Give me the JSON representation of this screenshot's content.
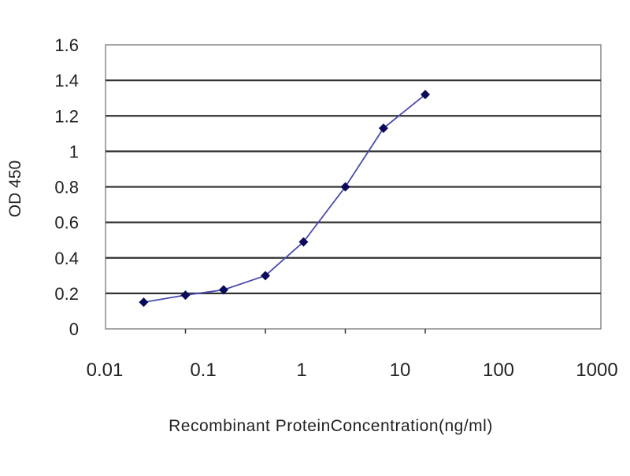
{
  "chart_data": {
    "type": "line",
    "title": "",
    "xlabel": "Recombinant ProteinConcentration(ng/ml)",
    "ylabel": "OD 450",
    "x_scale": "log",
    "xlim": [
      0.01,
      1000
    ],
    "ylim": [
      0,
      1.6
    ],
    "x_tick_labels": [
      "0.01",
      "0.1",
      "1",
      "10",
      "100",
      "1000"
    ],
    "y_tick_labels": [
      "0",
      "0.2",
      "0.4",
      "0.6",
      "0.8",
      "1",
      "1.2",
      "1.4",
      "1.6"
    ],
    "grid": "horizontal",
    "legend": "none",
    "series": [
      {
        "x": [
          0.03,
          0.1,
          0.3,
          1,
          3,
          10,
          30,
          100
        ],
        "y": [
          0.15,
          0.19,
          0.22,
          0.3,
          0.49,
          0.8,
          1.13,
          1.32
        ],
        "line_color": "#4a4ab0",
        "marker_color": "#0a0a5a",
        "marker": "diamond"
      }
    ]
  }
}
